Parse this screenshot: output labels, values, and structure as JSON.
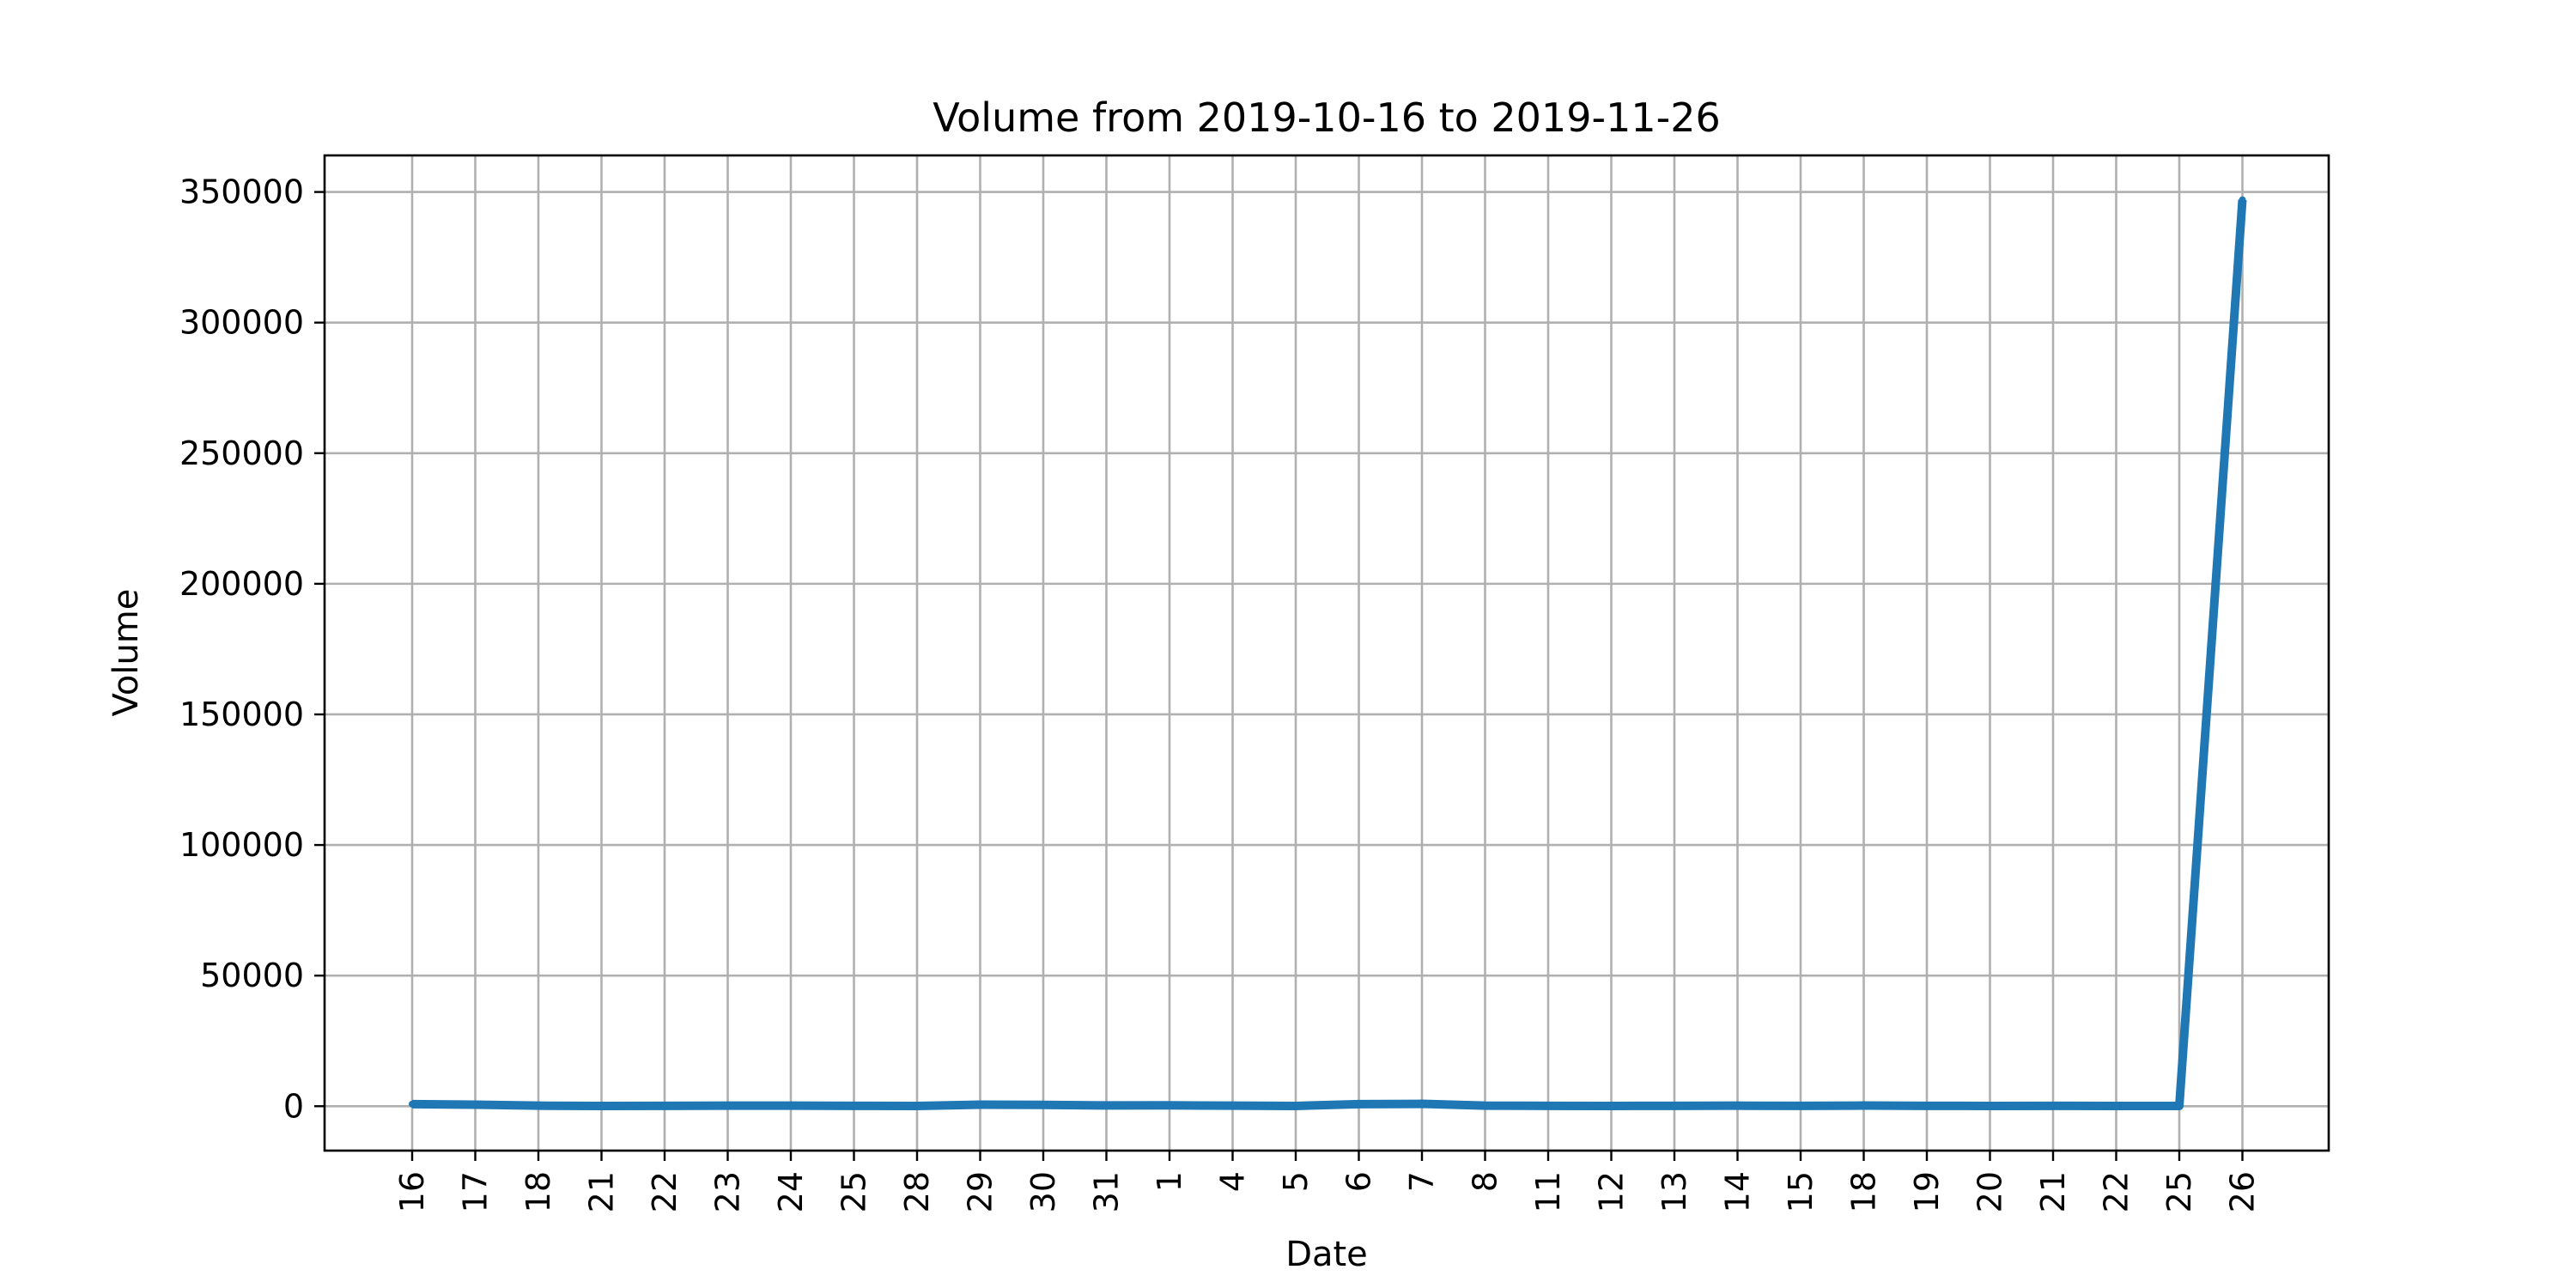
{
  "chart_data": {
    "type": "line",
    "title": "Volume from 2019-10-16 to 2019-11-26",
    "xlabel": "Date",
    "ylabel": "Volume",
    "x": [
      "2019-10-16",
      "2019-10-17",
      "2019-10-18",
      "2019-10-21",
      "2019-10-22",
      "2019-10-23",
      "2019-10-24",
      "2019-10-25",
      "2019-10-28",
      "2019-10-29",
      "2019-10-30",
      "2019-10-31",
      "2019-11-01",
      "2019-11-04",
      "2019-11-05",
      "2019-11-06",
      "2019-11-07",
      "2019-11-08",
      "2019-11-11",
      "2019-11-12",
      "2019-11-13",
      "2019-11-14",
      "2019-11-15",
      "2019-11-18",
      "2019-11-19",
      "2019-11-20",
      "2019-11-21",
      "2019-11-22",
      "2019-11-25",
      "2019-11-26"
    ],
    "x_tick_labels": [
      "16",
      "17",
      "18",
      "21",
      "22",
      "23",
      "24",
      "25",
      "28",
      "29",
      "30",
      "31",
      "1",
      "4",
      "5",
      "6",
      "7",
      "8",
      "11",
      "12",
      "13",
      "14",
      "15",
      "18",
      "19",
      "20",
      "21",
      "22",
      "25",
      "26"
    ],
    "series": [
      {
        "values": [
          800,
          600,
          200,
          100,
          150,
          200,
          200,
          150,
          100,
          600,
          500,
          300,
          350,
          200,
          100,
          800,
          900,
          200,
          150,
          100,
          150,
          200,
          150,
          250,
          150,
          100,
          150,
          100,
          100,
          347000
        ]
      }
    ],
    "ylim": [
      -17000,
      364000
    ],
    "y_ticks": [
      0,
      50000,
      100000,
      150000,
      200000,
      250000,
      300000,
      350000
    ],
    "grid": true,
    "legend": "none",
    "line_color": "#1f77b4"
  }
}
